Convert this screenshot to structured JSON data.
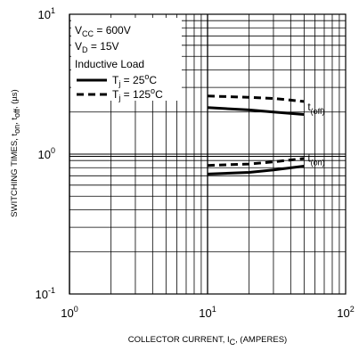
{
  "chart_data": {
    "type": "line",
    "title": "",
    "xlabel": {
      "main": "COLLECTOR CURRENT, I",
      "sub": "C",
      "rest": ", (AMPERES)"
    },
    "ylabel": {
      "part1": "SWITCHING TIMES, t",
      "sub1": "on",
      "part2": ", t",
      "sub2": "off",
      "part3": ", (µs)"
    },
    "x_scale": "log",
    "y_scale": "log",
    "xlim": [
      1,
      100
    ],
    "ylim": [
      0.1,
      10
    ],
    "grid": true,
    "x_ticks": [
      {
        "value": 1,
        "base": "10",
        "exp": "0"
      },
      {
        "value": 10,
        "base": "10",
        "exp": "1"
      },
      {
        "value": 100,
        "base": "10",
        "exp": "2"
      }
    ],
    "y_ticks": [
      {
        "value": 10,
        "base": "10",
        "exp": "1"
      },
      {
        "value": 1,
        "base": "10",
        "exp": "0"
      },
      {
        "value": 0.1,
        "base": "10",
        "exp": "-1"
      }
    ],
    "conditions": {
      "vcc": {
        "main": "V",
        "sub": "CC",
        "rest": " = 600V"
      },
      "vd": {
        "main": "V",
        "sub": "D",
        "rest": " = 15V"
      },
      "load": "Inductive Load"
    },
    "legend": [
      {
        "pre": "T",
        "sub": "j",
        "post1": " = 25",
        "sup": "o",
        "post2": "C",
        "dash": "solid"
      },
      {
        "pre": "T",
        "sub": "j",
        "post1": " = 125",
        "sup": "o",
        "post2": "C",
        "dash": "dashed"
      }
    ],
    "series": [
      {
        "name": "T_j = 25°C",
        "group": "off",
        "dash": "solid",
        "x": [
          10,
          20,
          30,
          50
        ],
        "y": [
          2.15,
          2.07,
          2.0,
          1.92
        ]
      },
      {
        "name": "T_j = 125°C",
        "group": "off",
        "dash": "dashed",
        "x": [
          10,
          20,
          30,
          50
        ],
        "y": [
          2.6,
          2.55,
          2.5,
          2.38
        ]
      },
      {
        "name": "T_j = 25°C",
        "group": "on",
        "dash": "solid",
        "x": [
          10,
          20,
          30,
          50
        ],
        "y": [
          0.72,
          0.74,
          0.77,
          0.82
        ]
      },
      {
        "name": "T_j = 125°C",
        "group": "on",
        "dash": "dashed",
        "x": [
          10,
          20,
          30,
          50
        ],
        "y": [
          0.83,
          0.85,
          0.88,
          0.93
        ]
      }
    ],
    "series_labels": [
      {
        "main": "t",
        "sub": "(off)",
        "x": 50,
        "y": 2.05
      },
      {
        "main": "t",
        "sub": "(on)",
        "x": 50,
        "y": 0.88
      }
    ]
  }
}
